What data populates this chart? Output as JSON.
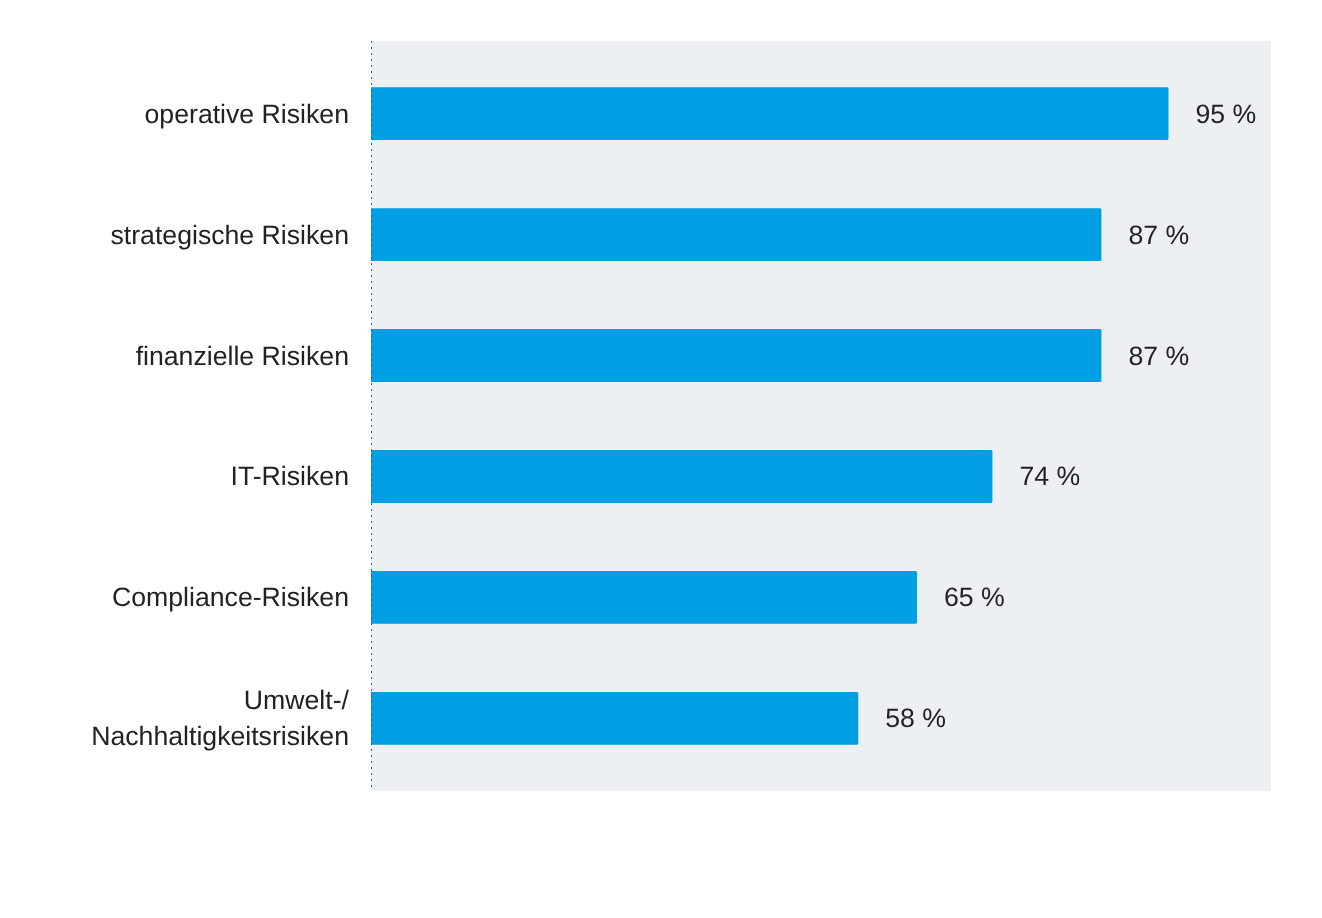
{
  "chart_data": {
    "type": "bar",
    "orientation": "horizontal",
    "categories": [
      "operative Risiken",
      "strategische Risiken",
      "finanzielle Risiken",
      "IT-Risiken",
      "Compliance-Risiken",
      "Umwelt-/\nNachhaltigkeitsrisiken"
    ],
    "values": [
      95,
      87,
      87,
      74,
      65,
      58
    ],
    "value_labels": [
      "95 %",
      "87 %",
      "87 %",
      "74 %",
      "65 %",
      "58 %"
    ],
    "color": "#009fe3"
  }
}
